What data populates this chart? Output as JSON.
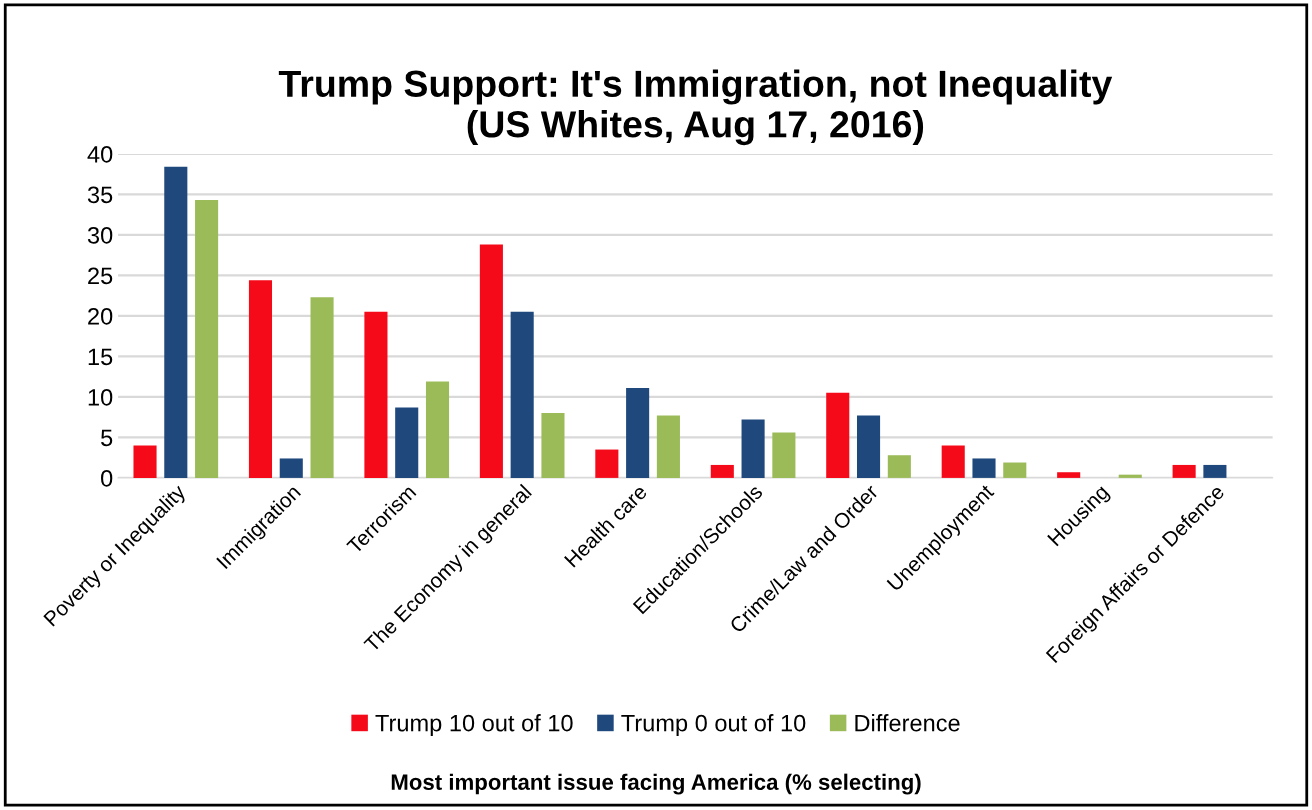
{
  "chart_data": {
    "type": "bar",
    "title": "Trump Support: It's Immigration, not Inequality\n(US Whites, Aug 17, 2016)",
    "xlabel": "Most important issue facing America (% selecting)",
    "categories": [
      "Poverty or Inequality",
      "Immigration",
      "Terrorism",
      "The Economy in general",
      "Health care",
      "Education/Schools",
      "Crime/Law and Order",
      "Unemployment",
      "Housing",
      "Foreign Affairs or Defence"
    ],
    "series": [
      {
        "name": "Trump 10 out of 10",
        "color": "#f50a1a",
        "values": [
          4.0,
          24.4,
          20.5,
          28.8,
          3.5,
          1.6,
          10.5,
          4.0,
          0.7,
          1.6
        ]
      },
      {
        "name": "Trump 0 out of 10",
        "color": "#1f497d",
        "values": [
          38.4,
          2.4,
          8.7,
          20.5,
          11.1,
          7.2,
          7.7,
          2.4,
          0,
          1.6
        ]
      },
      {
        "name": "Difference",
        "color": "#9bbb59",
        "values": [
          34.3,
          22.3,
          11.9,
          8.0,
          7.7,
          5.6,
          2.8,
          1.9,
          0.4,
          0
        ]
      }
    ],
    "ylim": [
      0,
      40
    ],
    "yticks": [
      0,
      5,
      10,
      15,
      20,
      25,
      30,
      35,
      40
    ],
    "grid": "y",
    "legend": "bottom"
  }
}
